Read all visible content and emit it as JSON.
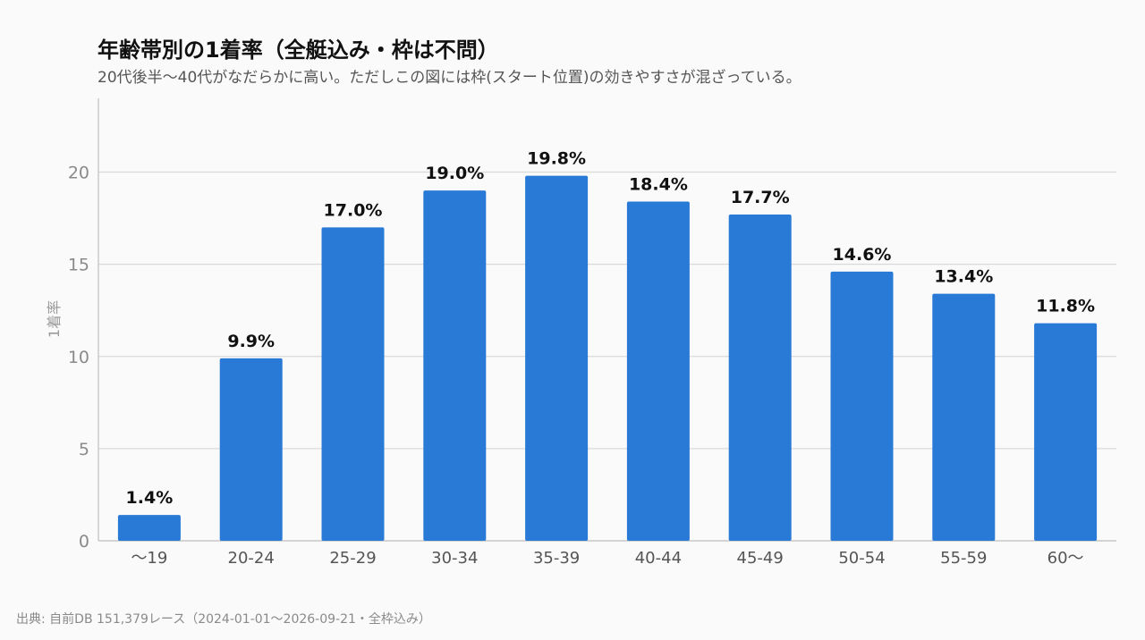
{
  "title": "年齢帯別の1着率（全艇込み・枠は不問）",
  "subtitle": "20代後半〜40代がなだらかに高い。ただしこの図には枠(スタート位置)の効きやすさが混ざっている。",
  "source": "出典: 自前DB 151,379レース（2024-01-01〜2026-09-21・全枠込み）",
  "colors": {
    "bar": "#2979d6",
    "grid": "#d9d9d9",
    "axis": "#bdbdbd",
    "background": "#fafafa"
  },
  "chart_data": {
    "type": "bar",
    "categories": [
      "〜19",
      "20-24",
      "25-29",
      "30-34",
      "35-39",
      "40-44",
      "45-49",
      "50-54",
      "55-59",
      "60〜"
    ],
    "values": [
      1.4,
      9.9,
      17.0,
      19.0,
      19.8,
      18.4,
      17.7,
      14.6,
      13.4,
      11.8
    ],
    "data_labels": [
      "1.4%",
      "9.9%",
      "17.0%",
      "19.0%",
      "19.8%",
      "18.4%",
      "17.7%",
      "14.6%",
      "13.4%",
      "11.8%"
    ],
    "ylabel": "1着率",
    "xlabel": "",
    "ylim": [
      0,
      24
    ],
    "yticks": [
      0,
      5,
      10,
      15,
      20
    ],
    "grid": true
  }
}
